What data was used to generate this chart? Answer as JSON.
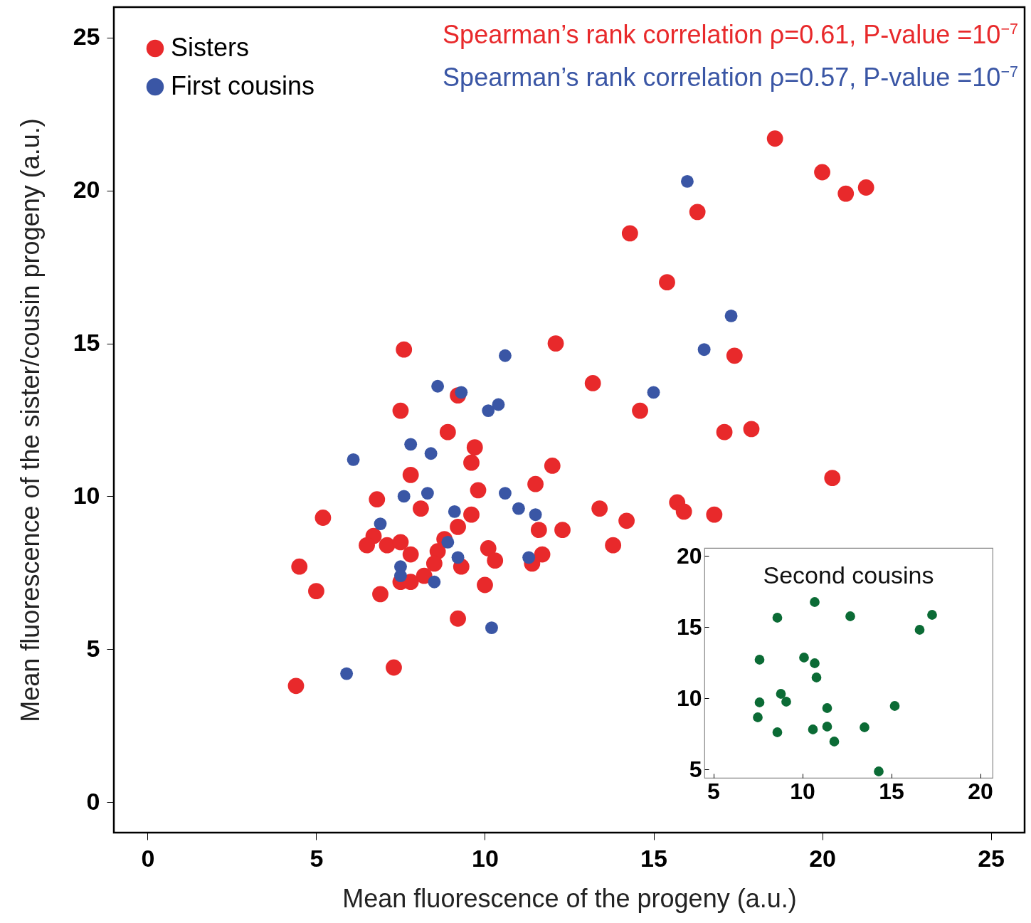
{
  "chart_data": [
    {
      "type": "scatter",
      "xlabel": "Mean fluorescence of the progeny (a.u.)",
      "ylabel": "Mean fluorescence of the sister/cousin progeny (a.u.)",
      "xlim": [
        -1,
        26
      ],
      "ylim": [
        -1,
        26
      ],
      "xticks": [
        0,
        5,
        10,
        15,
        20,
        25
      ],
      "yticks": [
        0,
        5,
        10,
        15,
        20,
        25
      ],
      "legend": "top left",
      "marker": "circle",
      "annotations": [
        "Spearman’s rank correlation ρ=0.61, P-value =10$^{−7}$",
        "Spearman’s rank correlation ρ=0.57, P-value =10$^{−7}$"
      ],
      "series": [
        {
          "name": "Sisters",
          "color": "#e8292b",
          "x": [
            18.6,
            20.0,
            20.7,
            21.3,
            16.3,
            14.3,
            15.4,
            7.6,
            12.1,
            17.4,
            13.2,
            9.2,
            7.5,
            14.6,
            17.1,
            17.9,
            8.9,
            9.7,
            9.6,
            12.0,
            7.8,
            20.3,
            9.8,
            11.5,
            6.8,
            8.1,
            5.2,
            13.4,
            15.7,
            15.9,
            14.2,
            16.8,
            9.6,
            9.2,
            11.6,
            12.3,
            6.7,
            6.5,
            7.1,
            7.5,
            7.8,
            8.8,
            8.6,
            10.1,
            13.8,
            4.5,
            10.3,
            11.7,
            11.4,
            9.3,
            8.5,
            7.5,
            7.8,
            8.2,
            5.0,
            6.9,
            10.0,
            9.2,
            7.3,
            4.4
          ],
          "values": [
            21.7,
            20.6,
            19.9,
            20.1,
            19.3,
            18.6,
            17.0,
            14.8,
            15.0,
            14.6,
            13.7,
            13.3,
            12.8,
            12.8,
            12.1,
            12.2,
            12.1,
            11.6,
            11.1,
            11.0,
            10.7,
            10.6,
            10.2,
            10.4,
            9.9,
            9.6,
            9.3,
            9.6,
            9.8,
            9.5,
            9.2,
            9.4,
            9.4,
            9.0,
            8.9,
            8.9,
            8.7,
            8.4,
            8.4,
            8.5,
            8.1,
            8.6,
            8.2,
            8.3,
            8.4,
            7.7,
            7.9,
            8.1,
            7.8,
            7.7,
            7.8,
            7.2,
            7.2,
            7.4,
            6.9,
            6.8,
            7.1,
            6.0,
            4.4,
            3.8
          ]
        },
        {
          "name": "First cousins",
          "color": "#3a56a5",
          "x": [
            16.0,
            17.3,
            10.6,
            8.6,
            9.3,
            10.4,
            10.1,
            16.5,
            15.0,
            7.8,
            8.4,
            6.1,
            7.6,
            8.3,
            10.6,
            11.0,
            11.5,
            9.1,
            6.9,
            8.9,
            9.2,
            11.3,
            7.5,
            7.5,
            8.5,
            10.2,
            5.9
          ],
          "values": [
            20.3,
            15.9,
            14.6,
            13.6,
            13.4,
            13.0,
            12.8,
            14.8,
            13.4,
            11.7,
            11.4,
            11.2,
            10.0,
            10.1,
            10.1,
            9.6,
            9.4,
            9.5,
            9.1,
            8.5,
            8.0,
            8.0,
            7.7,
            7.4,
            7.2,
            5.7,
            4.2
          ]
        }
      ]
    },
    {
      "type": "scatter",
      "title": "Second cousins",
      "xlim": [
        4.5,
        20.7
      ],
      "ylim": [
        4.4,
        20.55
      ],
      "xticks": [
        5,
        10,
        15,
        20
      ],
      "yticks": [
        5,
        10,
        15,
        20
      ],
      "marker": "circle",
      "series": [
        {
          "color": "#0b6b35",
          "x": [
            10.7,
            8.6,
            12.7,
            17.3,
            16.6,
            7.6,
            10.1,
            10.7,
            10.8,
            8.8,
            9.1,
            7.6,
            11.4,
            15.2,
            7.5,
            8.6,
            10.6,
            11.4,
            13.5,
            11.8,
            14.3
          ],
          "values": [
            16.75,
            15.65,
            15.75,
            15.85,
            14.8,
            12.7,
            12.85,
            12.45,
            11.45,
            10.3,
            9.75,
            9.7,
            9.3,
            9.45,
            8.65,
            7.6,
            7.8,
            8.0,
            7.95,
            6.95,
            4.85
          ]
        }
      ]
    }
  ]
}
